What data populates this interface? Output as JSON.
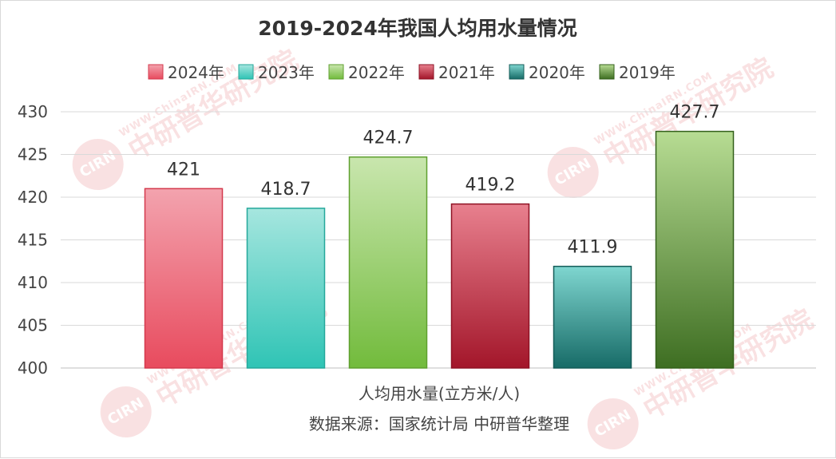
{
  "watermark": {
    "logo_text": "CIRN",
    "url_text": "WWW.ChinaIRN.COM",
    "name_text": "中研普华研究院"
  },
  "chart_data": {
    "type": "bar",
    "title": "2019-2024年我国人均用水量情况",
    "xlabel": "人均用水量(立方米/人)",
    "source": "数据来源：国家统计局 中研普华整理",
    "ylim": [
      400,
      430
    ],
    "yticks": [
      400,
      405,
      410,
      415,
      420,
      425,
      430
    ],
    "legend_position": "top",
    "grid": true,
    "series": [
      {
        "name": "2024年",
        "value": 421,
        "label": "421",
        "color_top": "#f3a3ae",
        "color_bottom": "#e84b5e",
        "border": "#d43a4e"
      },
      {
        "name": "2023年",
        "value": 418.7,
        "label": "418.7",
        "color_top": "#a6e6df",
        "color_bottom": "#2fc4b5",
        "border": "#25a89b"
      },
      {
        "name": "2022年",
        "value": 424.7,
        "label": "424.7",
        "color_top": "#c9e6ae",
        "color_bottom": "#72bb3c",
        "border": "#5fa02f"
      },
      {
        "name": "2021年",
        "value": 419.2,
        "label": "419.2",
        "color_top": "#e8808e",
        "color_bottom": "#a3162a",
        "border": "#8e1224"
      },
      {
        "name": "2020年",
        "value": 411.9,
        "label": "411.9",
        "color_top": "#7fd6d0",
        "color_bottom": "#176b67",
        "border": "#145c58"
      },
      {
        "name": "2019年",
        "value": 427.7,
        "label": "427.7",
        "color_top": "#b7dc93",
        "color_bottom": "#3e6e22",
        "border": "#33601b"
      }
    ]
  }
}
